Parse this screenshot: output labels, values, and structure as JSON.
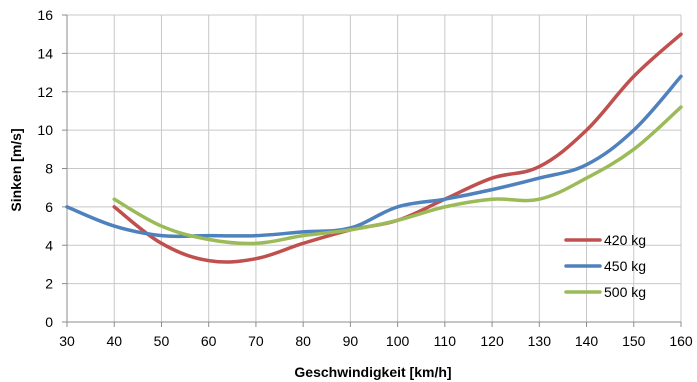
{
  "chart_data": {
    "type": "line",
    "title": "",
    "xlabel": "Geschwindigkeit [km/h]",
    "ylabel": "Sinken  [m/s]",
    "xlim": [
      30,
      160
    ],
    "ylim": [
      0,
      16
    ],
    "xticks": [
      30,
      40,
      50,
      60,
      70,
      80,
      90,
      100,
      110,
      120,
      130,
      140,
      150,
      160
    ],
    "yticks": [
      0,
      2,
      4,
      6,
      8,
      10,
      12,
      14,
      16
    ],
    "grid": true,
    "legend_position": "bottom-right",
    "series": [
      {
        "name": "420 kg",
        "color": "#c0504d",
        "x": [
          40,
          50,
          60,
          70,
          80,
          90,
          100,
          110,
          120,
          130,
          140,
          150,
          160
        ],
        "y": [
          6.0,
          4.1,
          3.2,
          3.3,
          4.1,
          4.8,
          5.3,
          6.4,
          7.5,
          8.1,
          10.0,
          12.8,
          15.0
        ]
      },
      {
        "name": "450 kg",
        "color": "#4f81bd",
        "x": [
          30,
          40,
          50,
          60,
          70,
          80,
          90,
          100,
          110,
          120,
          130,
          140,
          150,
          160
        ],
        "y": [
          6.0,
          5.0,
          4.5,
          4.5,
          4.5,
          4.7,
          4.9,
          6.0,
          6.4,
          6.9,
          7.5,
          8.2,
          10.0,
          12.8
        ]
      },
      {
        "name": "500 kg",
        "color": "#9bbb59",
        "x": [
          40,
          50,
          60,
          70,
          80,
          90,
          100,
          110,
          120,
          130,
          140,
          150,
          160
        ],
        "y": [
          6.4,
          5.0,
          4.3,
          4.1,
          4.5,
          4.8,
          5.3,
          6.0,
          6.4,
          6.4,
          7.5,
          9.0,
          11.2
        ]
      }
    ]
  }
}
